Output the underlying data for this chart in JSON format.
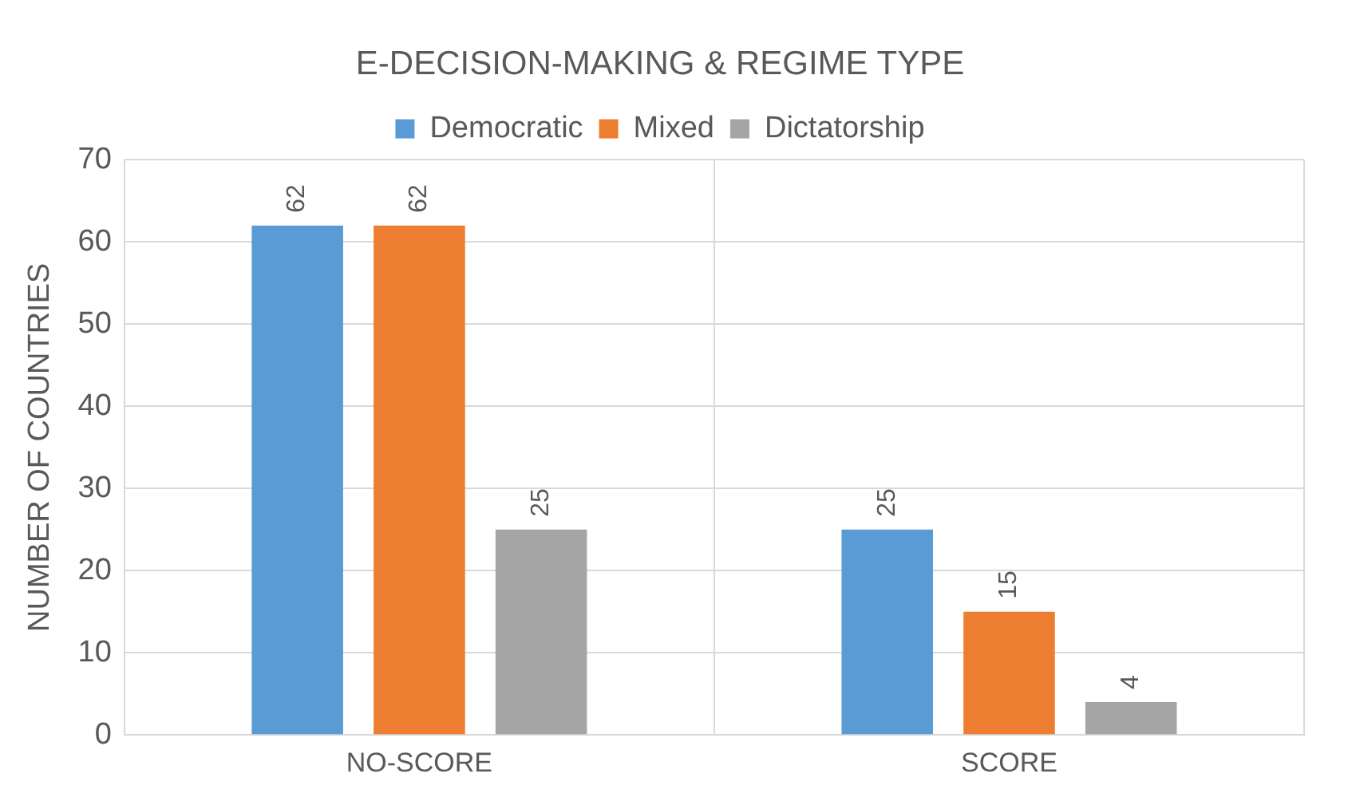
{
  "chart_data": {
    "type": "bar",
    "title": "E-DECISION-MAKING & REGIME TYPE",
    "ylabel": "NUMBER OF COUNTRIES",
    "categories": [
      "NO-SCORE",
      "SCORE"
    ],
    "series": [
      {
        "name": "Democratic",
        "color": "#5b9bd5",
        "values": [
          62,
          25
        ]
      },
      {
        "name": "Mixed",
        "color": "#ed7d31",
        "values": [
          62,
          15
        ]
      },
      {
        "name": "Dictatorship",
        "color": "#a5a5a5",
        "values": [
          25,
          4
        ]
      }
    ],
    "ylim": [
      0,
      70
    ],
    "yticks": [
      0,
      10,
      20,
      30,
      40,
      50,
      60,
      70
    ],
    "grid": true,
    "legend": "top",
    "data_labels": true
  }
}
